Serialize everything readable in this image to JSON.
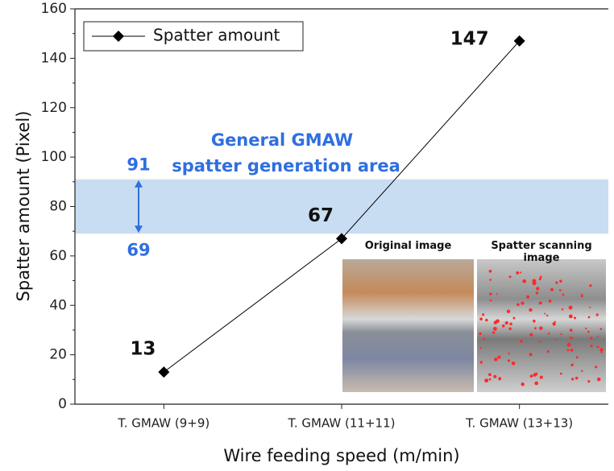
{
  "chart_data": {
    "type": "line",
    "categories": [
      "T. GMAW (9+9)",
      "T. GMAW (11+11)",
      "T. GMAW (13+13)"
    ],
    "series": [
      {
        "name": "Spatter amount",
        "color": "#000000",
        "values": [
          13,
          67,
          147
        ]
      }
    ],
    "ylim": [
      0,
      160
    ],
    "yticks": [
      0,
      20,
      40,
      60,
      80,
      100,
      120,
      140,
      160
    ],
    "y_label": "Spatter amount (Pixel)",
    "x_label": "Wire feeding speed (m/min)",
    "band": [
      69,
      91
    ],
    "band_color": "#c9ddf2",
    "annotation": [
      "General GMAW",
      "spatter generation area"
    ],
    "inset_labels": [
      "Original image",
      "Spatter scanning image"
    ],
    "legend": "upper left"
  }
}
